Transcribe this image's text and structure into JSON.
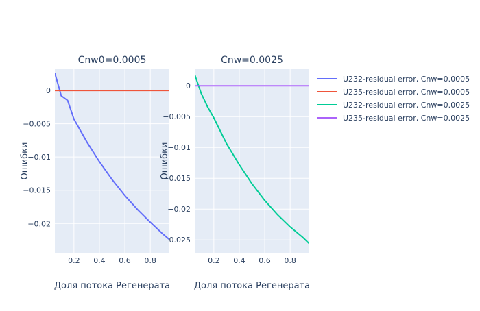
{
  "chart_data": [
    {
      "type": "line",
      "title": "Cnw0=0.0005",
      "xlabel": "Доля потока Регенерата",
      "ylabel": "Ошибки",
      "xlim": [
        0.05,
        0.95
      ],
      "ylim": [
        -0.0245,
        0.0033
      ],
      "x_ticks": [
        0.2,
        0.4,
        0.6,
        0.8
      ],
      "x_tick_labels": [
        "0.2",
        "0.4",
        "0.6",
        "0.8"
      ],
      "y_ticks": [
        0,
        -0.005,
        -0.01,
        -0.015,
        -0.02
      ],
      "y_tick_labels": [
        "0",
        "−0.005",
        "−0.01",
        "−0.015",
        "−0.02"
      ],
      "grid": true,
      "series": [
        {
          "name": "U232-residual error, Cnw=0.0005",
          "color": "#636efa",
          "x": [
            0.05,
            0.1,
            0.15,
            0.2,
            0.3,
            0.4,
            0.5,
            0.6,
            0.7,
            0.8,
            0.9,
            0.95
          ],
          "y": [
            0.0026,
            -0.0008,
            -0.0015,
            -0.0043,
            -0.0077,
            -0.0107,
            -0.0134,
            -0.0158,
            -0.0179,
            -0.0198,
            -0.0216,
            -0.0224
          ]
        },
        {
          "name": "U235-residual error, Cnw=0.0005",
          "color": "#ef553b",
          "x": [
            0.05,
            0.95
          ],
          "y": [
            0,
            0
          ]
        }
      ]
    },
    {
      "type": "line",
      "title": "Cnw=0.0025",
      "xlabel": "Доля потока Регенерата",
      "ylabel": "Ошибки",
      "xlim": [
        0.05,
        0.95
      ],
      "ylim": [
        -0.0272,
        0.0028
      ],
      "x_ticks": [
        0.2,
        0.4,
        0.6,
        0.8
      ],
      "x_tick_labels": [
        "0.2",
        "0.4",
        "0.6",
        "0.8"
      ],
      "y_ticks": [
        0,
        -0.005,
        -0.01,
        -0.015,
        -0.02,
        -0.025
      ],
      "y_tick_labels": [
        "0",
        "−0.005",
        "−0.01",
        "−0.015",
        "−0.02",
        "−0.025"
      ],
      "grid": true,
      "series": [
        {
          "name": "U232-residual error, Cnw=0.0025",
          "color": "#00cc96",
          "x": [
            0.05,
            0.1,
            0.15,
            0.2,
            0.3,
            0.4,
            0.5,
            0.6,
            0.7,
            0.8,
            0.9,
            0.95
          ],
          "y": [
            0.0018,
            -0.0012,
            -0.0034,
            -0.0052,
            -0.0094,
            -0.0128,
            -0.0159,
            -0.0186,
            -0.0209,
            -0.0229,
            -0.0246,
            -0.0256
          ]
        },
        {
          "name": "U235-residual error, Cnw=0.0025",
          "color": "#ab63fa",
          "x": [
            0.05,
            0.95
          ],
          "y": [
            0,
            0
          ]
        }
      ]
    }
  ],
  "legend": {
    "placement": "top-right",
    "items": [
      {
        "label": "U232-residual error, Cnw=0.0005",
        "color": "#636efa"
      },
      {
        "label": "U235-residual error, Cnw=0.0005",
        "color": "#ef553b"
      },
      {
        "label": "U232-residual error, Cnw=0.0025",
        "color": "#00cc96"
      },
      {
        "label": "U235-residual error, Cnw=0.0025",
        "color": "#ab63fa"
      }
    ]
  },
  "colors": {
    "plot_bg": "#e5ecf6",
    "grid": "#ffffff",
    "text": "#2a3f5f"
  }
}
